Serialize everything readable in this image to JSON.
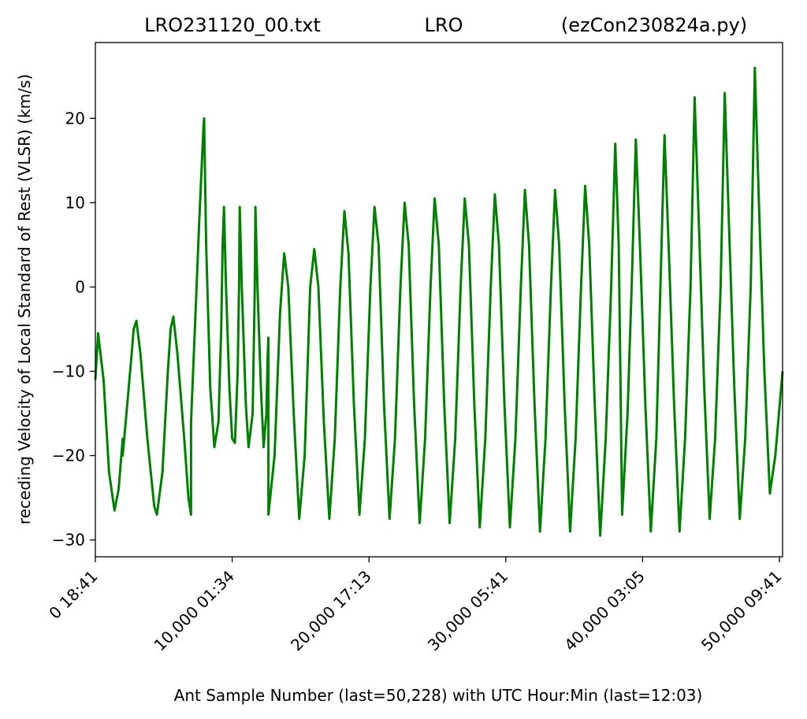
{
  "chart_data": {
    "type": "line",
    "title_left": "LRO231120_00.txt",
    "title_center": "LRO",
    "title_right": "(ezCon230824a.py)",
    "xlabel": "Ant Sample Number (last=50,228) with UTC Hour:Min (last=12:03)",
    "ylabel": "receding Velocity of Local Standard of Rest (VLSR) (km/s)",
    "xlim": [
      0,
      50228
    ],
    "ylim": [
      -32,
      29
    ],
    "x_ticks": [
      0,
      10000,
      20000,
      30000,
      40000,
      50000
    ],
    "x_tick_labels": [
      "0  18:41",
      "10,000  01:34",
      "20,000  17:13",
      "30,000  05:41",
      "40,000  03:05",
      "50,000  09:41"
    ],
    "y_ticks": [
      -30,
      -20,
      -10,
      0,
      10,
      20
    ],
    "y_tick_labels": [
      "−30",
      "−20",
      "−10",
      "0",
      "10",
      "20"
    ],
    "grid": false,
    "line_color": "#008000",
    "series": [
      {
        "points": [
          [
            0,
            -11
          ],
          [
            200,
            -5.5
          ],
          [
            600,
            -11
          ],
          [
            1000,
            -22
          ],
          [
            1400,
            -26.5
          ],
          [
            1700,
            -24
          ],
          [
            2000,
            -18
          ],
          [
            2001,
            -20
          ],
          [
            2600,
            -9
          ],
          [
            2800,
            -5
          ],
          [
            3000,
            -4
          ],
          [
            3300,
            -8
          ],
          [
            3800,
            -18
          ],
          [
            4300,
            -26
          ],
          [
            4500,
            -27
          ],
          [
            4900,
            -22
          ],
          [
            5300,
            -10
          ],
          [
            5500,
            -5
          ],
          [
            5700,
            -3.5
          ],
          [
            6000,
            -8
          ],
          [
            6500,
            -18
          ],
          [
            6800,
            -25
          ],
          [
            6990,
            -27
          ],
          [
            6991,
            -16
          ],
          [
            7300,
            -4
          ],
          [
            7600,
            8
          ],
          [
            7900,
            19
          ],
          [
            7950,
            20
          ],
          [
            8100,
            5
          ],
          [
            8400,
            -12
          ],
          [
            8700,
            -19
          ],
          [
            9000,
            -16
          ],
          [
            9200,
            -5
          ],
          [
            9300,
            5
          ],
          [
            9400,
            9.5
          ],
          [
            9550,
            0
          ],
          [
            9800,
            -12
          ],
          [
            10000,
            -18
          ],
          [
            10200,
            -18.5
          ],
          [
            10400,
            -10
          ],
          [
            10500,
            0
          ],
          [
            10550,
            9.5
          ],
          [
            10700,
            0
          ],
          [
            11000,
            -14
          ],
          [
            11200,
            -19
          ],
          [
            11500,
            -15
          ],
          [
            11650,
            0
          ],
          [
            11700,
            9.5
          ],
          [
            11850,
            0
          ],
          [
            12100,
            -12
          ],
          [
            12300,
            -19
          ],
          [
            12500,
            -15
          ],
          [
            12600,
            -8
          ],
          [
            12650,
            -6
          ],
          [
            12651,
            -27
          ],
          [
            13100,
            -20
          ],
          [
            13500,
            -3
          ],
          [
            13800,
            4
          ],
          [
            14100,
            0
          ],
          [
            14500,
            -15
          ],
          [
            14900,
            -27.5
          ],
          [
            15300,
            -20
          ],
          [
            15700,
            0
          ],
          [
            16000,
            4.5
          ],
          [
            16300,
            0
          ],
          [
            16700,
            -16
          ],
          [
            17100,
            -27.5
          ],
          [
            17500,
            -18
          ],
          [
            17900,
            0
          ],
          [
            18200,
            9
          ],
          [
            18500,
            4
          ],
          [
            18900,
            -14
          ],
          [
            19300,
            -27
          ],
          [
            19700,
            -18
          ],
          [
            20100,
            0
          ],
          [
            20400,
            9.5
          ],
          [
            20700,
            5
          ],
          [
            21100,
            -14
          ],
          [
            21500,
            -27.5
          ],
          [
            21900,
            -18
          ],
          [
            22300,
            0
          ],
          [
            22600,
            10
          ],
          [
            22900,
            5
          ],
          [
            23300,
            -14
          ],
          [
            23700,
            -28
          ],
          [
            24100,
            -18
          ],
          [
            24500,
            0
          ],
          [
            24800,
            10.5
          ],
          [
            25100,
            5
          ],
          [
            25500,
            -14
          ],
          [
            25900,
            -28
          ],
          [
            26300,
            -18
          ],
          [
            26700,
            0
          ],
          [
            27000,
            10.5
          ],
          [
            27300,
            5
          ],
          [
            27700,
            -14
          ],
          [
            28100,
            -28.5
          ],
          [
            28500,
            -18
          ],
          [
            28900,
            0
          ],
          [
            29200,
            11
          ],
          [
            29500,
            5
          ],
          [
            29900,
            -14
          ],
          [
            30300,
            -28.5
          ],
          [
            30700,
            -18
          ],
          [
            31100,
            0
          ],
          [
            31400,
            11.5
          ],
          [
            31700,
            5
          ],
          [
            32100,
            -14
          ],
          [
            32500,
            -29
          ],
          [
            32900,
            -18
          ],
          [
            33300,
            0
          ],
          [
            33600,
            11.5
          ],
          [
            33900,
            5
          ],
          [
            34300,
            -14
          ],
          [
            34700,
            -29
          ],
          [
            35100,
            -18
          ],
          [
            35500,
            0
          ],
          [
            35800,
            12
          ],
          [
            36100,
            5
          ],
          [
            36500,
            -14
          ],
          [
            36900,
            -29.5
          ],
          [
            37300,
            -18
          ],
          [
            37700,
            0
          ],
          [
            38000,
            17
          ],
          [
            38250,
            5
          ],
          [
            38400,
            -14
          ],
          [
            38500,
            -27
          ],
          [
            38900,
            -15
          ],
          [
            39200,
            0
          ],
          [
            39500,
            17.5
          ],
          [
            39800,
            5
          ],
          [
            40200,
            -14
          ],
          [
            40600,
            -29
          ],
          [
            41000,
            -18
          ],
          [
            41300,
            0
          ],
          [
            41600,
            18
          ],
          [
            41900,
            5
          ],
          [
            42300,
            -14
          ],
          [
            42700,
            -29
          ],
          [
            43100,
            -18
          ],
          [
            43500,
            0
          ],
          [
            43800,
            22.5
          ],
          [
            44100,
            8
          ],
          [
            44500,
            -12
          ],
          [
            44900,
            -27.5
          ],
          [
            45300,
            -18
          ],
          [
            45700,
            0
          ],
          [
            46000,
            23
          ],
          [
            46300,
            8
          ],
          [
            46700,
            -12
          ],
          [
            47100,
            -27.5
          ],
          [
            47500,
            -18
          ],
          [
            47900,
            0
          ],
          [
            48200,
            26
          ],
          [
            48500,
            10
          ],
          [
            48900,
            -10
          ],
          [
            49300,
            -24.5
          ],
          [
            49700,
            -20
          ],
          [
            50228,
            -10
          ]
        ]
      }
    ]
  }
}
